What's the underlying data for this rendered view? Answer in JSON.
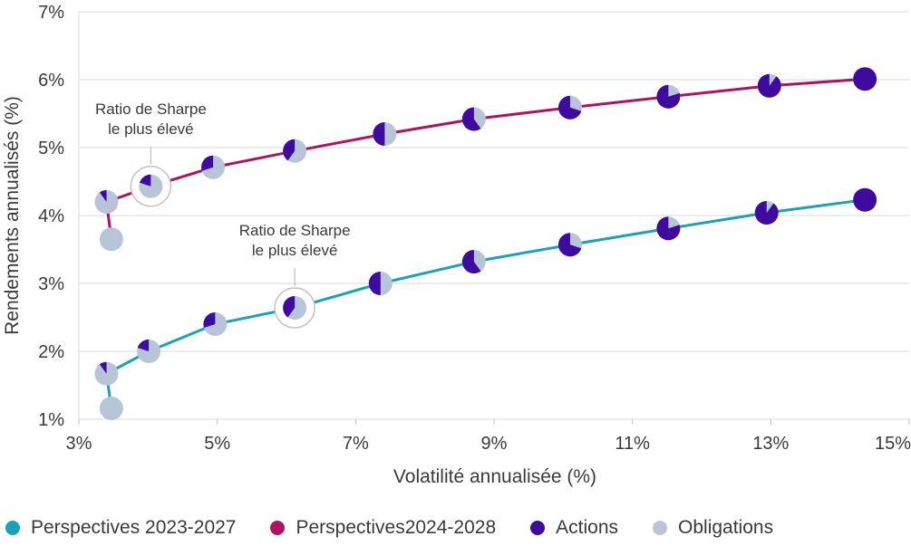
{
  "chart_data": {
    "type": "line",
    "xlabel": "Volatilité annualisée (%)",
    "ylabel": "Rendements annualisés (%)",
    "xlim": [
      3,
      15
    ],
    "ylim": [
      1,
      7
    ],
    "x_ticks": [
      3,
      5,
      7,
      9,
      11,
      13,
      15
    ],
    "x_tick_labels": [
      "3%",
      "5%",
      "7%",
      "9%",
      "11%",
      "13%",
      "15%"
    ],
    "y_ticks": [
      1,
      2,
      3,
      4,
      5,
      6,
      7
    ],
    "y_tick_labels": [
      "1%",
      "2%",
      "3%",
      "4%",
      "5%",
      "6%",
      "7%"
    ],
    "grid": "horizontal",
    "legend_position": "bottom",
    "series": [
      {
        "name": "Perspectives 2023-2027",
        "color": "#1aa3b8",
        "points": [
          {
            "x": 3.47,
            "y": 1.16,
            "equity": 0.0
          },
          {
            "x": 3.4,
            "y": 1.67,
            "equity": 0.1
          },
          {
            "x": 4.01,
            "y": 2.0,
            "equity": 0.2
          },
          {
            "x": 4.97,
            "y": 2.4,
            "equity": 0.3
          },
          {
            "x": 6.12,
            "y": 2.64,
            "equity": 0.4
          },
          {
            "x": 7.36,
            "y": 3.0,
            "equity": 0.5
          },
          {
            "x": 8.71,
            "y": 3.32,
            "equity": 0.6
          },
          {
            "x": 10.1,
            "y": 3.57,
            "equity": 0.7
          },
          {
            "x": 11.52,
            "y": 3.81,
            "equity": 0.8
          },
          {
            "x": 12.94,
            "y": 4.04,
            "equity": 0.9
          },
          {
            "x": 14.36,
            "y": 4.23,
            "equity": 1.0
          }
        ]
      },
      {
        "name": "Perspectives2024-2028",
        "color": "#b0125f",
        "points": [
          {
            "x": 3.47,
            "y": 3.65,
            "equity": 0.0
          },
          {
            "x": 3.4,
            "y": 4.2,
            "equity": 0.1
          },
          {
            "x": 4.04,
            "y": 4.43,
            "equity": 0.2
          },
          {
            "x": 4.94,
            "y": 4.71,
            "equity": 0.3
          },
          {
            "x": 6.12,
            "y": 4.95,
            "equity": 0.4
          },
          {
            "x": 7.42,
            "y": 5.2,
            "equity": 0.5
          },
          {
            "x": 8.71,
            "y": 5.42,
            "equity": 0.6
          },
          {
            "x": 10.1,
            "y": 5.59,
            "equity": 0.7
          },
          {
            "x": 11.52,
            "y": 5.75,
            "equity": 0.8
          },
          {
            "x": 12.98,
            "y": 5.91,
            "equity": 0.9
          },
          {
            "x": 14.36,
            "y": 6.01,
            "equity": 1.0
          }
        ]
      }
    ],
    "pie_legend": [
      {
        "name": "Actions",
        "color": "#3f0a9e"
      },
      {
        "name": "Obligations",
        "color": "#b8c5d9"
      }
    ],
    "annotations": [
      {
        "line1": "Ratio de Sharpe",
        "line2": "le plus élevé",
        "series": 1,
        "point": 2
      },
      {
        "line1": "Ratio de Sharpe",
        "line2": "le plus élevé",
        "series": 0,
        "point": 4
      }
    ]
  }
}
